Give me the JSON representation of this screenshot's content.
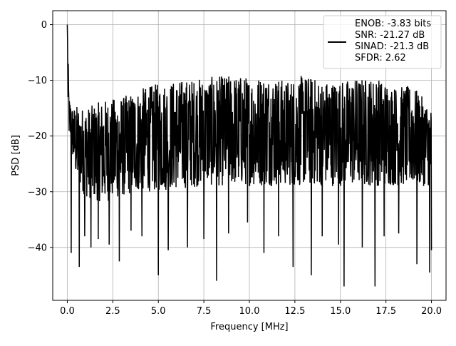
{
  "chart_data": {
    "type": "line",
    "title": "",
    "xlabel": "Frequency [MHz]",
    "ylabel": "PSD [dB]",
    "xlim": [
      -0.8,
      20.8
    ],
    "ylim": [
      -49.5,
      2.5
    ],
    "xticks": [
      0.0,
      2.5,
      5.0,
      7.5,
      10.0,
      12.5,
      15.0,
      17.5,
      20.0
    ],
    "xtick_labels": [
      "0.0",
      "2.5",
      "5.0",
      "7.5",
      "10.0",
      "12.5",
      "15.0",
      "17.5",
      "20.0"
    ],
    "yticks": [
      0,
      -10,
      -20,
      -30,
      -40
    ],
    "ytick_labels": [
      "0",
      "−10",
      "−20",
      "−30",
      "−40"
    ],
    "grid": true,
    "legend_position": "top-right",
    "series": [
      {
        "color": "#000000",
        "legend_lines": [
          "ENOB: -3.83 bits",
          "SNR: -21.27 dB",
          "SINAD: -21.3 dB",
          "SFDR: 2.62"
        ],
        "envelope_top": [
          [
            0.0,
            0.0
          ],
          [
            0.05,
            -6
          ],
          [
            0.1,
            -13
          ],
          [
            0.3,
            -15
          ],
          [
            0.5,
            -14.5
          ],
          [
            1.0,
            -15
          ],
          [
            2.0,
            -13.5
          ],
          [
            3.0,
            -13
          ],
          [
            4.0,
            -11.5
          ],
          [
            5.0,
            -10.5
          ],
          [
            6.0,
            -10
          ],
          [
            7.5,
            -9.5
          ],
          [
            9.0,
            -9
          ],
          [
            10.0,
            -9.3
          ],
          [
            11.0,
            -9
          ],
          [
            12.0,
            -10
          ],
          [
            13.0,
            -9
          ],
          [
            14.0,
            -10
          ],
          [
            15.0,
            -10
          ],
          [
            16.0,
            -9.5
          ],
          [
            17.0,
            -9.5
          ],
          [
            18.0,
            -11
          ],
          [
            19.0,
            -11
          ],
          [
            20.0,
            -15
          ]
        ],
        "envelope_bottom": [
          [
            0.0,
            -18
          ],
          [
            0.5,
            -28
          ],
          [
            1.0,
            -31
          ],
          [
            2.0,
            -32
          ],
          [
            3.0,
            -31
          ],
          [
            4.0,
            -30
          ],
          [
            5.0,
            -30
          ],
          [
            7.5,
            -29
          ],
          [
            10.0,
            -29
          ],
          [
            12.5,
            -29
          ],
          [
            15.0,
            -29
          ],
          [
            17.5,
            -29
          ],
          [
            20.0,
            -29
          ]
        ],
        "notches": [
          [
            0.22,
            -41
          ],
          [
            0.65,
            -43.5
          ],
          [
            0.95,
            -38
          ],
          [
            1.3,
            -40
          ],
          [
            1.7,
            -38.5
          ],
          [
            2.3,
            -39.5
          ],
          [
            2.85,
            -42.5
          ],
          [
            3.5,
            -37
          ],
          [
            4.1,
            -38
          ],
          [
            5.0,
            -45
          ],
          [
            5.55,
            -40.5
          ],
          [
            6.6,
            -40
          ],
          [
            7.5,
            -38.5
          ],
          [
            8.2,
            -46
          ],
          [
            8.85,
            -37.5
          ],
          [
            9.9,
            -35.5
          ],
          [
            10.8,
            -41
          ],
          [
            11.6,
            -38
          ],
          [
            12.4,
            -43.5
          ],
          [
            13.4,
            -45
          ],
          [
            14.0,
            -38
          ],
          [
            14.9,
            -39.5
          ],
          [
            15.2,
            -47
          ],
          [
            16.2,
            -40
          ],
          [
            16.9,
            -47
          ],
          [
            17.4,
            -38
          ],
          [
            18.2,
            -37.5
          ],
          [
            19.2,
            -43
          ],
          [
            19.9,
            -44.5
          ],
          [
            20.0,
            -40.5
          ]
        ]
      }
    ]
  }
}
